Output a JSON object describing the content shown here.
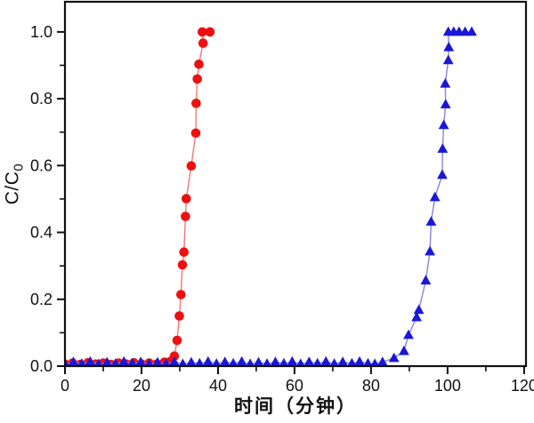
{
  "chart_data": {
    "type": "line-scatter",
    "title": "",
    "xlabel": "时间（分钟）",
    "ylabel_main": "C/C",
    "ylabel_sub": "0",
    "xlim": [
      0,
      120
    ],
    "ylim": [
      0,
      1.09
    ],
    "grid": false,
    "legend": "none",
    "colors": {
      "axis": "#111111",
      "background": "#ffffff",
      "red_marker": "#ee1010",
      "red_line": "#f57676",
      "blue_marker": "#1a17d6",
      "blue_line": "#8585e0"
    },
    "x_major_ticks": [
      0,
      20,
      40,
      60,
      80,
      100,
      120
    ],
    "x_tick_labels": [
      "0",
      "20",
      "40",
      "60",
      "80",
      "100",
      "120"
    ],
    "x_minor_ticks": [
      10,
      30,
      50,
      70,
      90,
      110
    ],
    "y_major_ticks": [
      0,
      0.2,
      0.4,
      0.6,
      0.8,
      1.0
    ],
    "y_tick_labels": [
      "0.0",
      "0.2",
      "0.4",
      "0.6",
      "0.8",
      "1.0"
    ],
    "y_minor_ticks": [
      0.1,
      0.3,
      0.5,
      0.7,
      0.9
    ],
    "series": [
      {
        "name": "red-circles",
        "marker": "circle",
        "marker_color": "#ee1010",
        "line_color": "#f57676",
        "points": [
          [
            0,
            0.006
          ],
          [
            2,
            0.009
          ],
          [
            4,
            0.005
          ],
          [
            6,
            0.01
          ],
          [
            8,
            0.006
          ],
          [
            10,
            0.009
          ],
          [
            12,
            0.005
          ],
          [
            14,
            0.009
          ],
          [
            16,
            0.006
          ],
          [
            18,
            0.01
          ],
          [
            20,
            0.006
          ],
          [
            22,
            0.009
          ],
          [
            24,
            0.006
          ],
          [
            26,
            0.012
          ],
          [
            27.6,
            0.014
          ],
          [
            28.6,
            0.03
          ],
          [
            29.3,
            0.077
          ],
          [
            29.9,
            0.15
          ],
          [
            30.3,
            0.214
          ],
          [
            30.7,
            0.303
          ],
          [
            31.1,
            0.341
          ],
          [
            31.5,
            0.448
          ],
          [
            31.7,
            0.501
          ],
          [
            33,
            0.599
          ],
          [
            34.2,
            0.697
          ],
          [
            34.3,
            0.786
          ],
          [
            34.6,
            0.859
          ],
          [
            35,
            0.903
          ],
          [
            36.1,
            0.966
          ],
          [
            35.9,
            1.0
          ],
          [
            37.9,
            1.0
          ]
        ]
      },
      {
        "name": "blue-triangles",
        "marker": "triangle",
        "marker_color": "#1a17d6",
        "line_color": "#8585e0",
        "points": [
          [
            0,
            0.006
          ],
          [
            2.2,
            0.012
          ],
          [
            4.4,
            0.007
          ],
          [
            6.6,
            0.013
          ],
          [
            8.8,
            0.006
          ],
          [
            11,
            0.011
          ],
          [
            13.2,
            0.007
          ],
          [
            15.4,
            0.013
          ],
          [
            17.6,
            0.008
          ],
          [
            19.8,
            0.012
          ],
          [
            22,
            0.006
          ],
          [
            24.2,
            0.011
          ],
          [
            26.4,
            0.007
          ],
          [
            28.6,
            0.012
          ],
          [
            30.8,
            0.006
          ],
          [
            33,
            0.011
          ],
          [
            35.2,
            0.008
          ],
          [
            37.4,
            0.013
          ],
          [
            39.6,
            0.007
          ],
          [
            41.8,
            0.012
          ],
          [
            44,
            0.008
          ],
          [
            46.2,
            0.013
          ],
          [
            48.4,
            0.006
          ],
          [
            50.6,
            0.011
          ],
          [
            52.8,
            0.007
          ],
          [
            55,
            0.012
          ],
          [
            57.2,
            0.008
          ],
          [
            59.4,
            0.013
          ],
          [
            61.6,
            0.006
          ],
          [
            63.8,
            0.012
          ],
          [
            66,
            0.008
          ],
          [
            68.2,
            0.013
          ],
          [
            70.4,
            0.007
          ],
          [
            72.6,
            0.012
          ],
          [
            75,
            0.008
          ],
          [
            77,
            0.013
          ],
          [
            79.2,
            0.008
          ],
          [
            81,
            0.006
          ],
          [
            83,
            0.012
          ],
          [
            86,
            0.024
          ],
          [
            88.6,
            0.045
          ],
          [
            89.8,
            0.093
          ],
          [
            91.9,
            0.146
          ],
          [
            92.5,
            0.168
          ],
          [
            94.3,
            0.256
          ],
          [
            95.4,
            0.343
          ],
          [
            95.7,
            0.432
          ],
          [
            96.7,
            0.505
          ],
          [
            98.6,
            0.572
          ],
          [
            98.7,
            0.65
          ],
          [
            99,
            0.721
          ],
          [
            99.5,
            0.783
          ],
          [
            99.4,
            0.845
          ],
          [
            100.2,
            0.915
          ],
          [
            100.3,
            0.954
          ],
          [
            100.2,
            1.0
          ],
          [
            101.6,
            1.0
          ],
          [
            103,
            1.0
          ],
          [
            104.6,
            1.0
          ],
          [
            106.3,
            1.0
          ]
        ]
      }
    ]
  }
}
